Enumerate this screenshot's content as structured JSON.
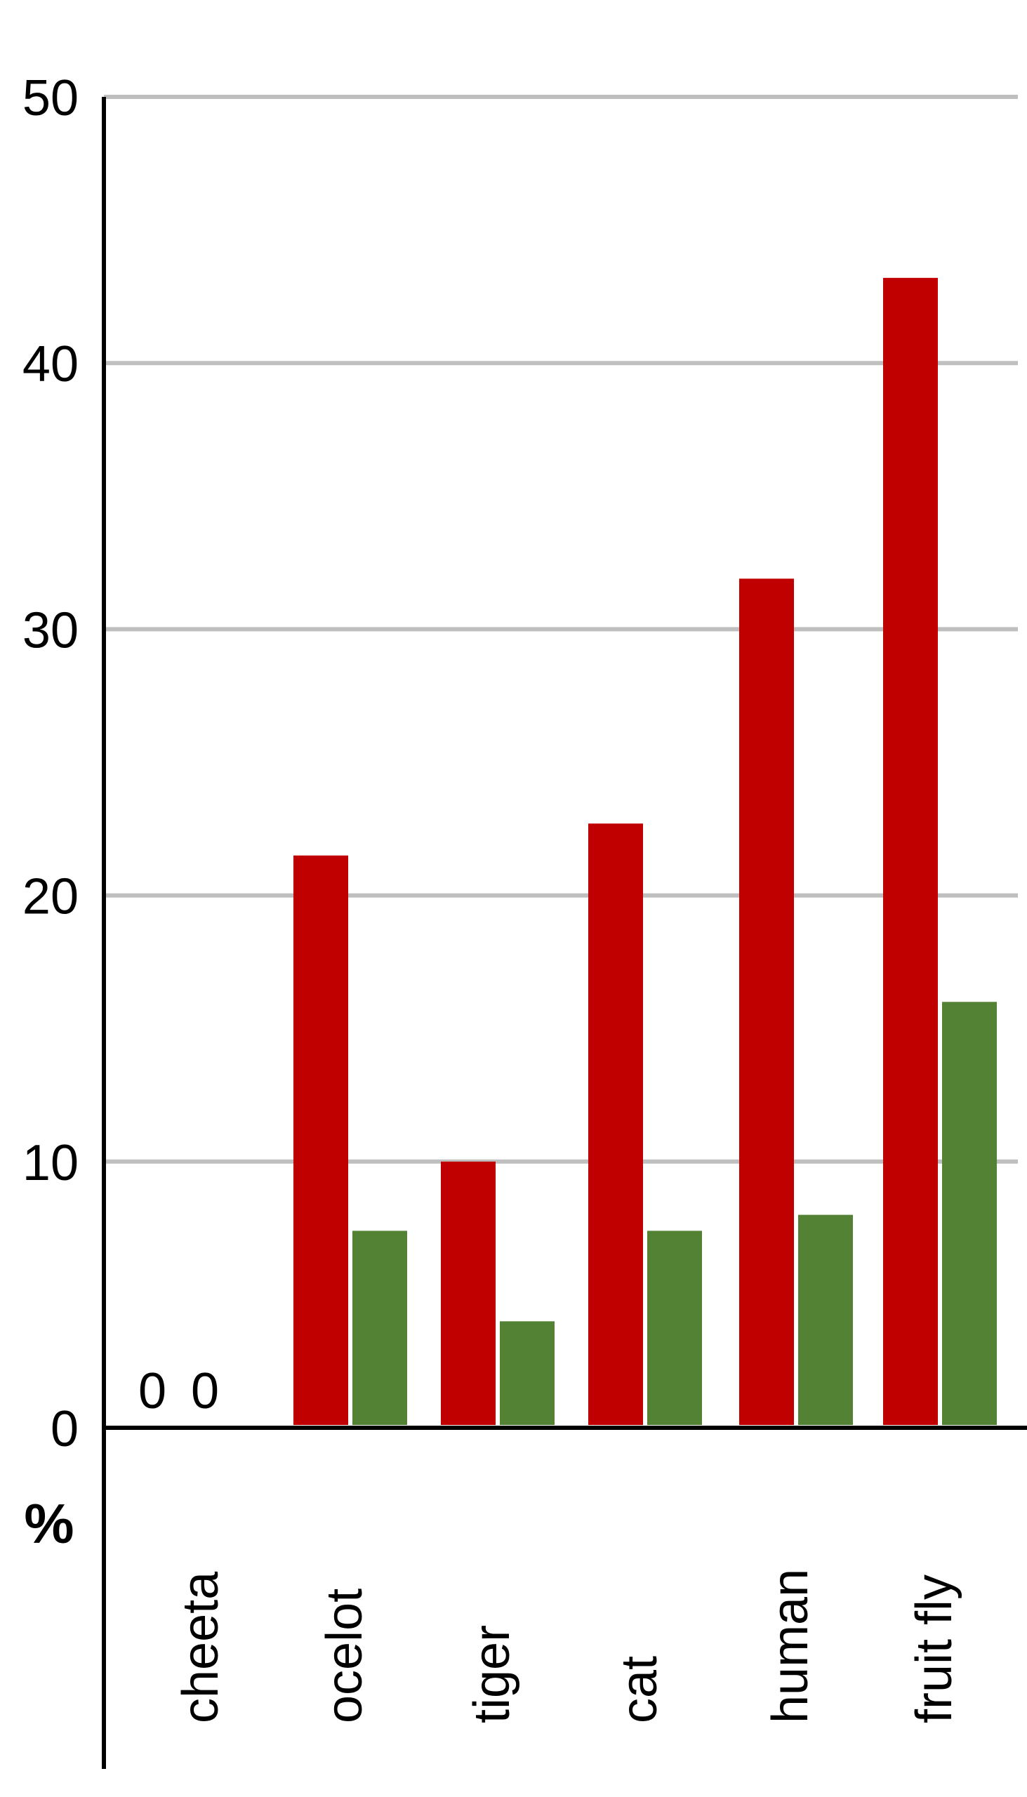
{
  "chart_data": {
    "type": "bar",
    "title": "",
    "xlabel": "",
    "ylabel": "%",
    "ylim": [
      0,
      50
    ],
    "yticks": [
      "0",
      "10",
      "20",
      "30",
      "40",
      "50"
    ],
    "grid": true,
    "legend": "none",
    "categories": [
      "cheeta",
      "ocelot",
      "tiger",
      "cat",
      "human",
      "fruit fly"
    ],
    "series": [
      {
        "color": "#C00000",
        "values": [
          0,
          21.5,
          10,
          22.7,
          31.9,
          43.2
        ]
      },
      {
        "color": "#548235",
        "values": [
          0,
          7.4,
          4,
          7.4,
          8,
          16
        ]
      }
    ],
    "data_labels": [
      {
        "category": "cheeta",
        "series": 0,
        "text": "0"
      },
      {
        "category": "cheeta",
        "series": 1,
        "text": "0"
      }
    ],
    "gridline_color": "#BFBFBF",
    "axis_color": "#000000"
  }
}
